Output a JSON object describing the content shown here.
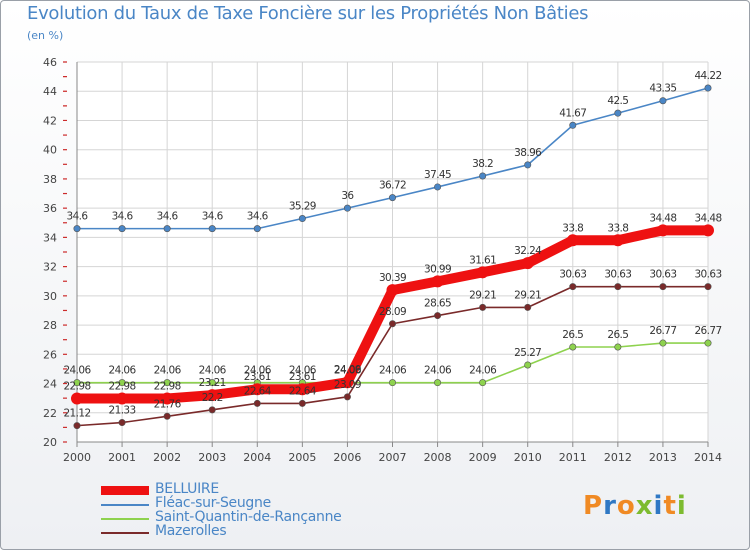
{
  "colors": {
    "accent": "#4a86c6",
    "grid": "#d5d5d5",
    "axis_red": "#cc2a2a"
  },
  "chart_data": {
    "type": "line",
    "title": "Evolution du Taux de Taxe Foncière sur les Propriétés Non Bâties",
    "subtitle": "(en %)",
    "xlabel": "",
    "ylabel": "",
    "ylim": [
      20,
      46
    ],
    "yticks": [
      "20",
      "22",
      "24",
      "26",
      "28",
      "30",
      "32",
      "34",
      "36",
      "38",
      "40",
      "42",
      "44",
      "46"
    ],
    "x": [
      "2000",
      "2001",
      "2002",
      "2003",
      "2004",
      "2005",
      "2006",
      "2007",
      "2008",
      "2009",
      "2010",
      "2011",
      "2012",
      "2013",
      "2014"
    ],
    "grid": true,
    "legend_position": "bottom-left",
    "series": [
      {
        "name": "Fléac-sur-Seugne",
        "color": "#4a86c6",
        "values": [
          34.6,
          34.6,
          34.6,
          34.6,
          34.6,
          35.29,
          36,
          36.72,
          37.45,
          38.2,
          38.96,
          41.67,
          42.5,
          43.35,
          44.22
        ],
        "labels": [
          "34.6",
          "34.6",
          "34.6",
          "34.6",
          "34.6",
          "35.29",
          "36",
          "36.72",
          "37.45",
          "38.2",
          "38.96",
          "41.67",
          "42.5",
          "43.35",
          "44.22"
        ]
      },
      {
        "name": "Saint-Quantin-de-Rançanne",
        "color": "#8ed24e",
        "values": [
          24.06,
          24.06,
          24.06,
          24.06,
          24.06,
          24.06,
          24.06,
          24.06,
          24.06,
          24.06,
          25.27,
          26.5,
          26.5,
          26.77,
          26.77
        ],
        "labels": [
          "24.06",
          "24.06",
          "24.06",
          "24.06",
          "24.06",
          "24.06",
          "24.06",
          "24.06",
          "24.06",
          "24.06",
          "25.27",
          "26.5",
          "26.5",
          "26.77",
          "26.77"
        ]
      },
      {
        "name": "Mazerolles",
        "color": "#7a2a2a",
        "values": [
          21.12,
          21.33,
          21.76,
          22.2,
          22.64,
          22.64,
          23.09,
          28.09,
          28.65,
          29.21,
          29.21,
          30.63,
          30.63,
          30.63,
          30.63
        ],
        "labels": [
          "21.12",
          "21.33",
          "21.76",
          "22.2",
          "22.64",
          "22.64",
          "23.09",
          "28.09",
          "28.65",
          "29.21",
          "29.21",
          "30.63",
          "30.63",
          "30.63",
          "30.63"
        ]
      },
      {
        "name": "BELLUIRE",
        "color": "#ee1111",
        "values": [
          22.98,
          22.98,
          22.98,
          23.21,
          23.61,
          23.61,
          24.09,
          30.39,
          30.99,
          31.61,
          32.24,
          33.8,
          33.8,
          34.48,
          34.48
        ],
        "labels": [
          "22.98",
          "22.98",
          "22.98",
          "23.21",
          "23.61",
          "23.61",
          "24.09",
          "30.39",
          "30.99",
          "31.61",
          "32.24",
          "33.8",
          "33.8",
          "34.48",
          "34.48"
        ]
      }
    ]
  },
  "legend": {
    "items": [
      {
        "label": "BELLUIRE",
        "color": "#ee1111"
      },
      {
        "label": "Fléac-sur-Seugne",
        "color": "#4a86c6"
      },
      {
        "label": "Saint-Quantin-de-Rançanne",
        "color": "#8ed24e"
      },
      {
        "label": "Mazerolles",
        "color": "#7a2a2a"
      }
    ]
  },
  "logo": {
    "text": "Proxiti"
  }
}
